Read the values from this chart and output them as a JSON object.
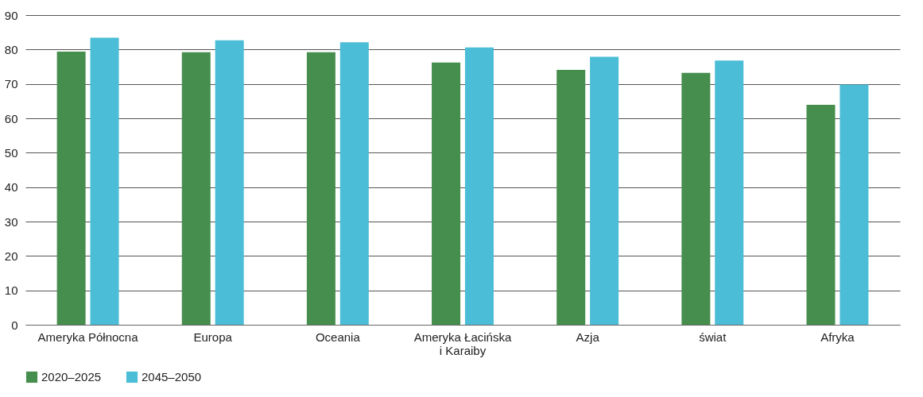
{
  "chart_data": {
    "type": "bar",
    "categories": [
      "Ameryka Północna",
      "Europa",
      "Oceania",
      "Ameryka Łacińska\ni Karaiby",
      "Azja",
      "świat",
      "Afryka"
    ],
    "series": [
      {
        "name": "2020–2025",
        "color": "#468e4d",
        "values": [
          79.4,
          79.2,
          79.2,
          76.2,
          74.1,
          73.2,
          63.9
        ]
      },
      {
        "name": "2045–2050",
        "color": "#4bbdd6",
        "values": [
          83.4,
          82.7,
          82.1,
          80.6,
          77.9,
          76.8,
          69.8
        ]
      }
    ],
    "ylim": [
      0,
      90
    ],
    "yticks": [
      0,
      10,
      20,
      30,
      40,
      50,
      60,
      70,
      80,
      90
    ],
    "grid": "y",
    "legend": "bottom"
  }
}
